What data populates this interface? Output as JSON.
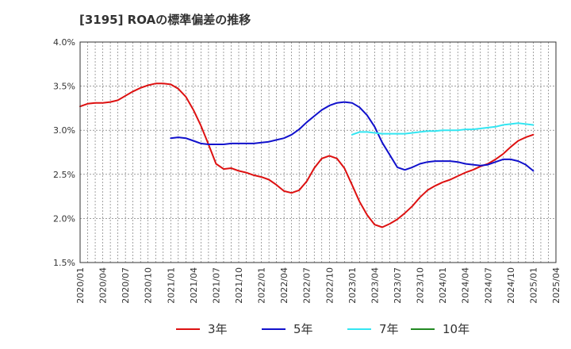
{
  "chart_data": {
    "type": "line",
    "title": "[3195]  ROAの標準偏差の推移",
    "xlabel": "",
    "ylabel": "",
    "ylim": [
      1.5,
      4.0
    ],
    "y_ticks": [
      "1.5%",
      "2.0%",
      "2.5%",
      "3.0%",
      "3.5%",
      "4.0%"
    ],
    "y_tick_values": [
      1.5,
      2.0,
      2.5,
      3.0,
      3.5,
      4.0
    ],
    "x_ticks": [
      "2020/01",
      "2020/04",
      "2020/07",
      "2020/10",
      "2021/01",
      "2021/04",
      "2021/07",
      "2021/10",
      "2022/01",
      "2022/04",
      "2022/07",
      "2022/10",
      "2023/01",
      "2023/04",
      "2023/07",
      "2023/10",
      "2024/01",
      "2024/04",
      "2024/07",
      "2024/10",
      "2025/01",
      "2025/04"
    ],
    "grid": true,
    "legend_position": "bottom",
    "series": [
      {
        "name": "3年",
        "color": "#dd1111",
        "start_index": 0,
        "values": [
          3.27,
          3.3,
          3.31,
          3.31,
          3.32,
          3.34,
          3.39,
          3.44,
          3.48,
          3.51,
          3.53,
          3.53,
          3.52,
          3.47,
          3.38,
          3.23,
          3.05,
          2.84,
          2.62,
          2.56,
          2.57,
          2.54,
          2.52,
          2.49,
          2.47,
          2.44,
          2.38,
          2.31,
          2.29,
          2.32,
          2.42,
          2.57,
          2.68,
          2.71,
          2.68,
          2.57,
          2.38,
          2.19,
          2.04,
          1.93,
          1.9,
          1.94,
          1.99,
          2.06,
          2.14,
          2.24,
          2.32,
          2.37,
          2.41,
          2.44,
          2.48,
          2.52,
          2.55,
          2.59,
          2.62,
          2.67,
          2.73,
          2.81,
          2.88,
          2.92,
          2.95
        ]
      },
      {
        "name": "5年",
        "color": "#1111cc",
        "start_index": 12,
        "values": [
          2.91,
          2.92,
          2.91,
          2.88,
          2.85,
          2.84,
          2.84,
          2.84,
          2.85,
          2.85,
          2.85,
          2.85,
          2.86,
          2.87,
          2.89,
          2.91,
          2.95,
          3.01,
          3.09,
          3.16,
          3.23,
          3.28,
          3.31,
          3.32,
          3.31,
          3.26,
          3.17,
          3.04,
          2.86,
          2.72,
          2.58,
          2.55,
          2.58,
          2.62,
          2.64,
          2.65,
          2.65,
          2.65,
          2.64,
          2.62,
          2.61,
          2.6,
          2.61,
          2.64,
          2.67,
          2.67,
          2.65,
          2.61,
          2.54
        ]
      },
      {
        "name": "7年",
        "color": "#33e6f2",
        "start_index": 36,
        "values": [
          2.95,
          2.98,
          2.98,
          2.97,
          2.96,
          2.96,
          2.96,
          2.96,
          2.97,
          2.98,
          2.99,
          2.99,
          3.0,
          3.0,
          3.0,
          3.01,
          3.01,
          3.02,
          3.03,
          3.04,
          3.06,
          3.07,
          3.08,
          3.07,
          3.06
        ]
      },
      {
        "name": "10年",
        "color": "#228822",
        "start_index": 0,
        "values": []
      }
    ]
  }
}
